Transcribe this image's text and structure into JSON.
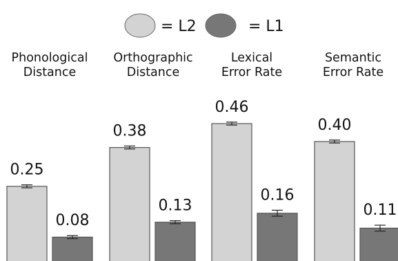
{
  "legend": [
    {
      "swatch_color": "#d3d3d3",
      "label": "= L2"
    },
    {
      "swatch_color": "#777777",
      "label": "= L1"
    }
  ],
  "chart_data": {
    "type": "bar",
    "categories": [
      [
        "Phonological",
        "Distance"
      ],
      [
        "Orthographic",
        "Distance"
      ],
      [
        "Lexical",
        "Error Rate"
      ],
      [
        "Semantic",
        "Error Rate"
      ]
    ],
    "series": [
      {
        "name": "L2",
        "color": "#d3d3d3",
        "values": [
          0.25,
          0.38,
          0.46,
          0.4
        ],
        "value_labels": [
          "0.25",
          "0.38",
          "0.46",
          "0.40"
        ],
        "errors": [
          0.005,
          0.005,
          0.005,
          0.005
        ]
      },
      {
        "name": "L1",
        "color": "#777777",
        "values": [
          0.08,
          0.13,
          0.16,
          0.11
        ],
        "value_labels": [
          "0.08",
          "0.13",
          "0.16",
          "0.11"
        ],
        "errors": [
          0.005,
          0.005,
          0.01,
          0.01
        ]
      }
    ],
    "ylim": [
      0,
      0.48
    ],
    "grid": false,
    "axes_visible": false,
    "legend_position": "top-center"
  }
}
